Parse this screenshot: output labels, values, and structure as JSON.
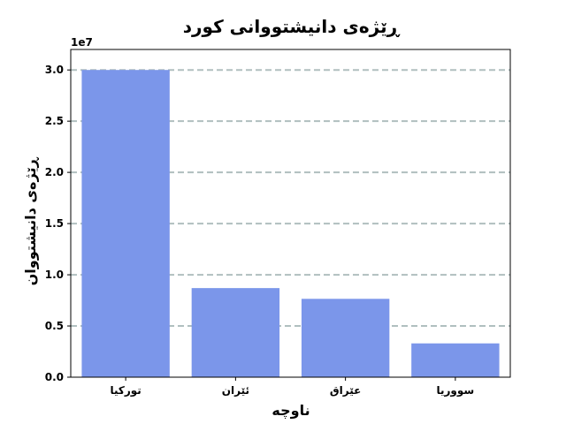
{
  "chart_data": {
    "type": "bar",
    "title": "ڕێژەی دانیشتووانی کورد",
    "xlabel": "ناوچە",
    "ylabel": "ڕێژەی دانیشتووان",
    "offset_label": "1e7",
    "categories": [
      "تورکیا",
      "ئێران",
      "عێراق",
      "سووریا"
    ],
    "values": [
      30000000,
      8700000,
      7650000,
      3300000
    ],
    "ylim": [
      0,
      32000000
    ],
    "yticks": [
      0,
      5000000,
      10000000,
      15000000,
      20000000,
      25000000,
      30000000
    ],
    "ytick_labels": [
      "0.0",
      "0.5",
      "1.0",
      "1.5",
      "2.0",
      "2.5",
      "3.0"
    ],
    "grid": true,
    "grid_style": "dashed",
    "legend": "none",
    "bar_color": "#7b96ea",
    "grid_color": "#b0bfbf"
  }
}
